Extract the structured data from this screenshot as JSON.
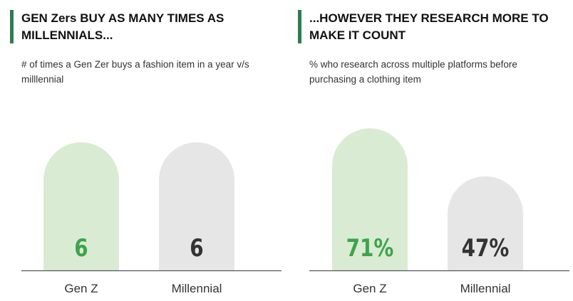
{
  "colors": {
    "accent": "#2e7d4f",
    "genz_bar": "#d9ecd3",
    "genz_text": "#3fa34d",
    "millennial_bar": "#e6e6e6",
    "millennial_text": "#333333",
    "axis": "#555555"
  },
  "left_panel": {
    "title": "GEN Zers BUY AS MANY TIMES AS MILLENNIALS...",
    "subtitle": "# of times a Gen Zer buys a fashion item in a year v/s milllennial"
  },
  "right_panel": {
    "title": "...HOWEVER THEY RESEARCH MORE TO MAKE IT COUNT",
    "subtitle": "% who research across multiple  platforms before purchasing a clothing item"
  },
  "chart_data": [
    {
      "type": "bar",
      "title": "GEN Zers BUY AS MANY TIMES AS MILLENNIALS...",
      "subtitle": "# of times a Gen Zer buys a fashion item in a year v/s milllennial",
      "categories": [
        "Gen Z",
        "Millennial"
      ],
      "values": [
        6,
        6
      ],
      "value_labels": [
        "6",
        "6"
      ],
      "ylim": [
        0,
        7.5
      ],
      "grid": false
    },
    {
      "type": "bar",
      "title": "...HOWEVER THEY RESEARCH MORE TO MAKE IT COUNT",
      "subtitle": "% who research across multiple  platforms before purchasing a clothing item",
      "categories": [
        "Gen Z",
        "Millennial"
      ],
      "values": [
        71,
        47
      ],
      "value_labels": [
        "71%",
        "47%"
      ],
      "ylim": [
        0,
        80
      ],
      "grid": false
    }
  ]
}
